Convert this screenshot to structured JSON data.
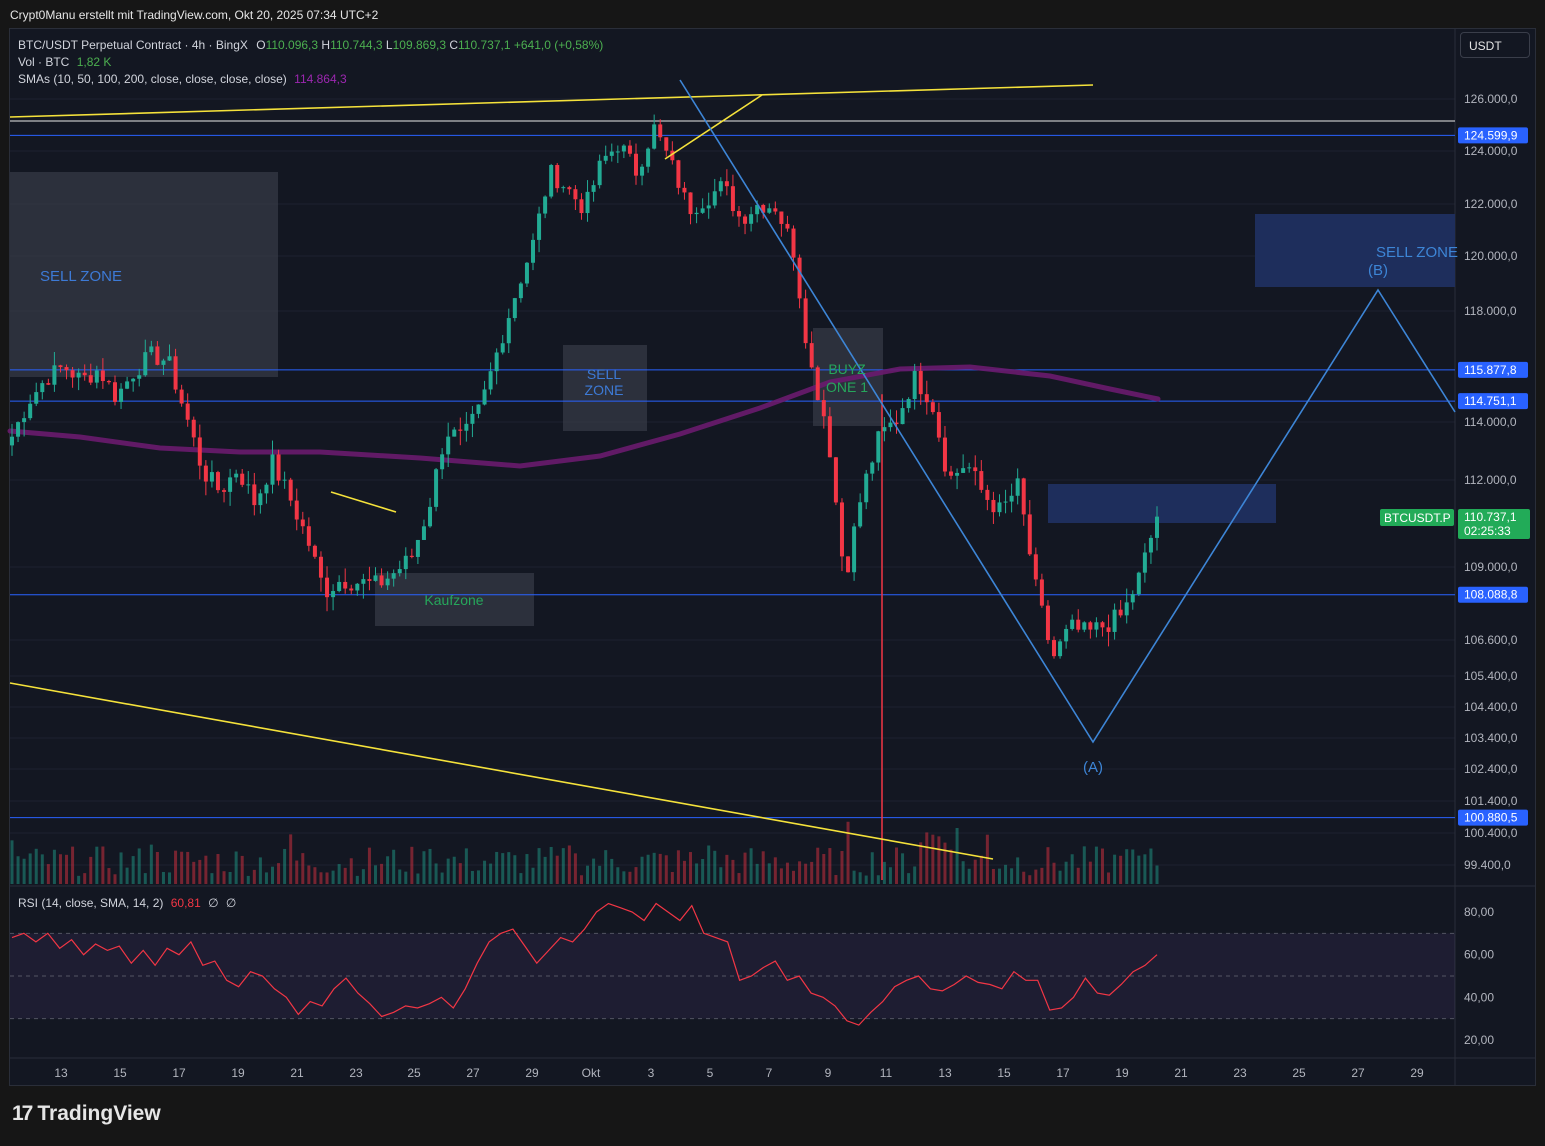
{
  "header": {
    "credit": "Crypt0Manu erstellt mit TradingView.com, Okt 20, 2025 07:34 UTC+2"
  },
  "legend": {
    "symbol": "BTC/USDT Perpetual Contract · 4h · BingX",
    "o_label": "O",
    "o_value": "110.096,3",
    "h_label": "H",
    "h_value": "110.744,3",
    "l_label": "L",
    "l_value": "109.869,3",
    "c_label": "C",
    "c_value": "110.737,1",
    "change": "+641,0 (+0,58%)",
    "vol_label": "Vol · BTC",
    "vol_value": "1,82 K",
    "sma_label": "SMAs (10, 50, 100, 200, close, close, close, close)",
    "sma_value": "114.864,3",
    "rsi_label": "RSI (14, close, SMA, 14, 2)",
    "rsi_value": "60,81",
    "rsi_na1": "∅",
    "rsi_na2": "∅"
  },
  "currency_button": "USDT",
  "branding": {
    "logo_mark": "17",
    "logo_text": "TradingView"
  },
  "colors": {
    "background": "#131722",
    "up": "#22ab94",
    "down": "#f23645",
    "hline": "#2962ff",
    "sma": "#6a1b6e",
    "trend": "#f5e23b",
    "wave": "#3d85d6",
    "zone": "#363a45",
    "bluezone": "#1e2e5c",
    "rsi": "#f23645"
  },
  "chart_data": [
    {
      "type": "candlestick",
      "title": "BTC/USDT Perpetual Contract · 4h · BingX",
      "x_ticks": [
        "13",
        "15",
        "17",
        "19",
        "21",
        "23",
        "25",
        "27",
        "29",
        "Okt",
        "3",
        "5",
        "7",
        "9",
        "11",
        "13",
        "15",
        "17",
        "19",
        "21",
        "23",
        "25",
        "27",
        "29"
      ],
      "y_ticks": [
        "126.000,0",
        "124.000,0",
        "122.000,0",
        "120.000,0",
        "118.000,0",
        "114.000,0",
        "112.000,0",
        "109.000,0",
        "106.600,0",
        "105.400,0",
        "104.400,0",
        "103.400,0",
        "102.400,0",
        "101.400,0",
        "100.400,0",
        "99.400,0"
      ],
      "price_labels": [
        {
          "text": "124.599,9",
          "value": 124600
        },
        {
          "text": "115.877,8",
          "value": 115878
        },
        {
          "text": "114.751,1",
          "value": 114751
        },
        {
          "text": "108.088,8",
          "value": 108089
        },
        {
          "text": "100.880,5",
          "value": 100881
        }
      ],
      "current_price": {
        "symbol": "BTCUSDT.P",
        "price": "110.737,1",
        "countdown": "02:25:33"
      },
      "sma_last": 114864.3,
      "annotations": [
        "SELL ZONE",
        "SELL ZONE",
        "Kaufzone",
        "BUYZONE 1",
        "SELL ZONE",
        "(A)",
        "(B)"
      ],
      "close_path": [
        113500,
        114800,
        115600,
        116000,
        115500,
        115900,
        114900,
        115800,
        116400,
        116200,
        114300,
        112300,
        111600,
        112400,
        111200,
        112600,
        111400,
        110000,
        108200,
        108600,
        108500,
        108400,
        108800,
        109300,
        111000,
        113700,
        113400,
        114500,
        116600,
        118600,
        120400,
        123200,
        122600,
        121800,
        123600,
        124300,
        123200,
        124900,
        123500,
        121800,
        122200,
        122700,
        121400,
        122000,
        121900,
        120400,
        116100,
        113800,
        108600,
        111600,
        113500,
        114100,
        115600,
        114800,
        112000,
        112600,
        111500,
        110900,
        111800,
        108300,
        106000,
        107000,
        106800,
        107100,
        107400,
        108700,
        110700
      ]
    },
    {
      "type": "line",
      "title": "RSI (14, close, SMA, 14, 2)",
      "y_ticks": [
        "80,00",
        "60,00",
        "40,00",
        "20,00"
      ],
      "band": [
        30,
        70
      ],
      "last": 60.81,
      "values": [
        68,
        70,
        66,
        70,
        63,
        67,
        60,
        65,
        62,
        64,
        56,
        62,
        55,
        63,
        60,
        66,
        55,
        57,
        48,
        45,
        52,
        50,
        44,
        40,
        32,
        38,
        36,
        44,
        49,
        42,
        37,
        31,
        33,
        36,
        35,
        37,
        40,
        35,
        44,
        56,
        66,
        70,
        72,
        64,
        56,
        62,
        68,
        66,
        72,
        80,
        84,
        82,
        80,
        76,
        84,
        80,
        76,
        83,
        70,
        68,
        66,
        48,
        50,
        54,
        57,
        48,
        50,
        42,
        40,
        36,
        29,
        27,
        33,
        38,
        45,
        48,
        50,
        44,
        43,
        46,
        50,
        47,
        46,
        44,
        52,
        48,
        48,
        34,
        35,
        40,
        49,
        42,
        41,
        46,
        52,
        55,
        60
      ]
    }
  ]
}
